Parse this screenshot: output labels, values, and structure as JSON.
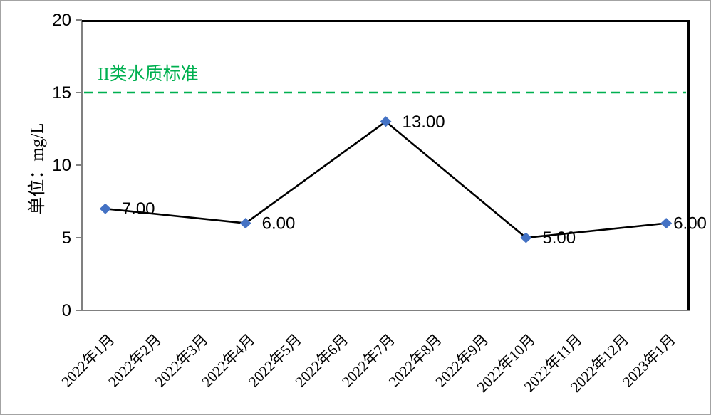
{
  "chart_data": {
    "type": "line",
    "title": "",
    "xlabel": "",
    "ylabel": "单位：mg/L",
    "ylim": [
      0,
      20
    ],
    "yticks": [
      0,
      5,
      10,
      15,
      20
    ],
    "grid": false,
    "legend": "none",
    "axis_color": "#808080",
    "plot_border_color": "#000000",
    "frame_border_color": "#a3a3a3",
    "categories": [
      "2022年1月",
      "2022年2月",
      "2022年3月",
      "2022年4月",
      "2022年5月",
      "2022年6月",
      "2022年7月",
      "2022年8月",
      "2022年9月",
      "2022年10月",
      "2022年11月",
      "2022年12月",
      "2023年1月"
    ],
    "series": [
      {
        "line_color": "#000000",
        "marker_shape": "diamond",
        "marker_color": "#4472C4",
        "points": [
          {
            "category": "2022年1月",
            "index": 0,
            "value": 7,
            "label": "7.00"
          },
          {
            "category": "2022年4月",
            "index": 3,
            "value": 6,
            "label": "6.00"
          },
          {
            "category": "2022年7月",
            "index": 6,
            "value": 13,
            "label": "13.00"
          },
          {
            "category": "2022年10月",
            "index": 9,
            "value": 5,
            "label": "5.00"
          },
          {
            "category": "2023年1月",
            "index": 12,
            "value": 6,
            "label": "6.00"
          }
        ]
      }
    ],
    "threshold": {
      "label": "II类水质标准",
      "value": 15,
      "color": "#00B050",
      "line_style": "dashed"
    }
  }
}
